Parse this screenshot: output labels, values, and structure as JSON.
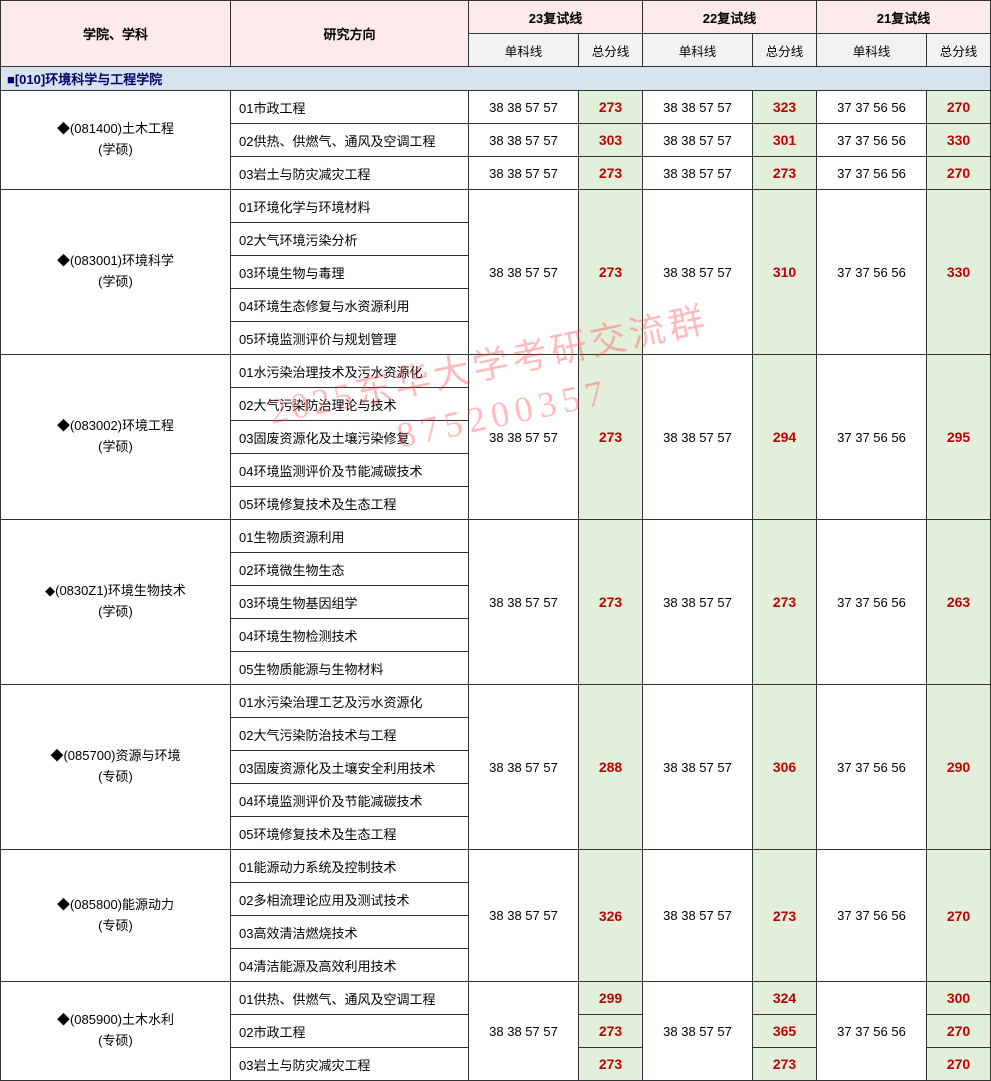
{
  "watermark": {
    "line1": "2025东华大学考研交流群",
    "line2": "875200357"
  },
  "headers": {
    "col_school": "学院、学科",
    "col_direction": "研究方向",
    "y23": "23复试线",
    "y22": "22复试线",
    "y21": "21复试线",
    "single": "单科线",
    "total": "总分线"
  },
  "banner": "■[010]环境科学与工程学院",
  "scores": {
    "s23": "38  38  57  57",
    "s22": "38  38  57  57",
    "s21": "37  37  56  56"
  },
  "majors": [
    {
      "name_line1": "◆(081400)土木工程",
      "name_line2": "(学硕)",
      "dirs": [
        {
          "label": "01市政工程",
          "t23": "273",
          "t22": "323",
          "t21": "270",
          "ownRow": true
        },
        {
          "label": "02供热、供燃气、通风及空调工程",
          "t23": "303",
          "t22": "301",
          "t21": "330",
          "ownRow": true
        },
        {
          "label": "03岩土与防灾减灾工程",
          "t23": "273",
          "t22": "273",
          "t21": "270",
          "ownRow": true
        }
      ]
    },
    {
      "name_line1": "◆(083001)环境科学",
      "name_line2": "(学硕)",
      "merged": {
        "t23": "273",
        "t22": "310",
        "t21": "330"
      },
      "dirs": [
        {
          "label": "01环境化学与环境材料"
        },
        {
          "label": "02大气环境污染分析"
        },
        {
          "label": "03环境生物与毒理"
        },
        {
          "label": "04环境生态修复与水资源利用"
        },
        {
          "label": "05环境监测评价与规划管理"
        }
      ]
    },
    {
      "name_line1": "◆(083002)环境工程",
      "name_line2": "(学硕)",
      "merged": {
        "t23": "273",
        "t22": "294",
        "t21": "295"
      },
      "dirs": [
        {
          "label": "01水污染治理技术及污水资源化"
        },
        {
          "label": "02大气污染防治理论与技术"
        },
        {
          "label": "03固废资源化及土壤污染修复"
        },
        {
          "label": "04环境监测评价及节能减碳技术"
        },
        {
          "label": "05环境修复技术及生态工程"
        }
      ]
    },
    {
      "name_line1": "◆(0830Z1)环境生物技术",
      "name_line2": "(学硕)",
      "merged": {
        "t23": "273",
        "t22": "273",
        "t21": "263"
      },
      "dirs": [
        {
          "label": "01生物质资源利用"
        },
        {
          "label": "02环境微生物生态"
        },
        {
          "label": "03环境生物基因组学"
        },
        {
          "label": "04环境生物检测技术"
        },
        {
          "label": "05生物质能源与生物材料"
        }
      ]
    },
    {
      "name_line1": "◆(085700)资源与环境",
      "name_line2": "(专硕)",
      "merged": {
        "t23": "288",
        "t22": "306",
        "t21": "290"
      },
      "dirs": [
        {
          "label": "01水污染治理工艺及污水资源化"
        },
        {
          "label": "02大气污染防治技术与工程"
        },
        {
          "label": "03固废资源化及土壤安全利用技术"
        },
        {
          "label": "04环境监测评价及节能减碳技术"
        },
        {
          "label": "05环境修复技术及生态工程"
        }
      ]
    },
    {
      "name_line1": "◆(085800)能源动力",
      "name_line2": "(专硕)",
      "merged": {
        "t23": "326",
        "t22": "273",
        "t21": "270"
      },
      "dirs": [
        {
          "label": "01能源动力系统及控制技术"
        },
        {
          "label": "02多相流理论应用及测试技术"
        },
        {
          "label": "03高效清洁燃烧技术"
        },
        {
          "label": "04清洁能源及高效利用技术"
        }
      ]
    },
    {
      "name_line1": "◆(085900)土木水利",
      "name_line2": "(专硕)",
      "special": true,
      "dirs": [
        {
          "label": "01供热、供燃气、通风及空调工程",
          "t23": "299",
          "t22": "324",
          "t21": "300"
        },
        {
          "label": "02市政工程",
          "t23": "273",
          "t22": "365",
          "t21": "270"
        },
        {
          "label": "03岩土与防灾减灾工程",
          "t23": "273",
          "t22": "273",
          "t21": "270"
        }
      ]
    }
  ],
  "colors": {
    "header_bg": "#fdeaea",
    "subheader_bg": "#f2f2f2",
    "banner_bg": "#d7e3ef",
    "total_bg": "#e2efda",
    "total_color": "#c00000",
    "border": "#333333"
  },
  "col_widths": {
    "school": 230,
    "direction": 238,
    "single": 110,
    "total": 64
  }
}
